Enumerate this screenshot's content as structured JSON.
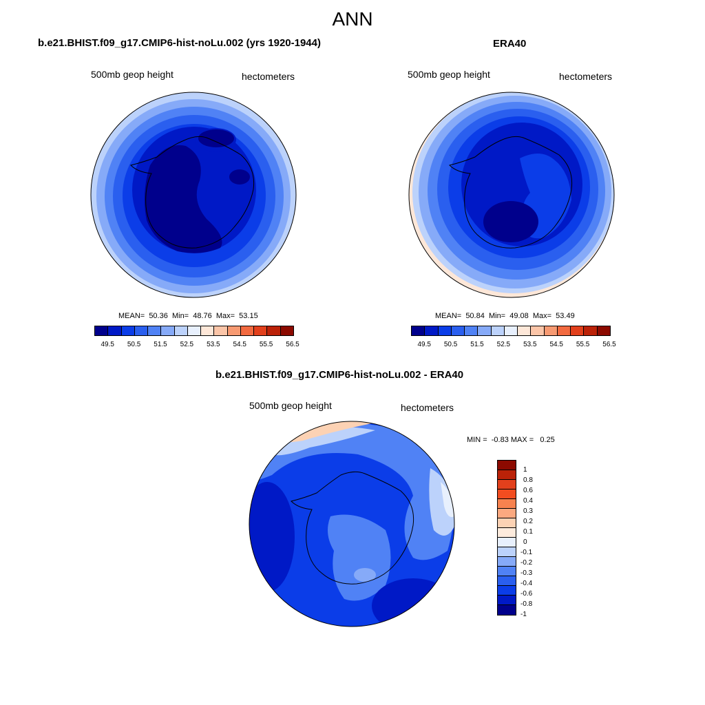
{
  "main_title": "ANN",
  "panels": [
    {
      "title": "b.e21.BHIST.f09_g17.CMIP6-hist-noLu.002 (yrs 1920-1944)",
      "left_label": "500mb geop height",
      "right_label": "hectometers",
      "stats": "MEAN=  50.36  Min=  48.76  Max=  53.15",
      "colorbar_ticks": [
        "49.5",
        "50.5",
        "51.5",
        "52.5",
        "53.5",
        "54.5",
        "55.5",
        "56.5"
      ]
    },
    {
      "title": "ERA40",
      "left_label": "500mb geop height",
      "right_label": "hectometers",
      "stats": "MEAN=  50.84  Min=  49.08  Max=  53.49",
      "colorbar_ticks": [
        "49.5",
        "50.5",
        "51.5",
        "52.5",
        "53.5",
        "54.5",
        "55.5",
        "56.5"
      ]
    },
    {
      "title": "b.e21.BHIST.f09_g17.CMIP6-hist-noLu.002 - ERA40",
      "left_label": "500mb geop height",
      "right_label": "hectometers",
      "stats": "MIN =  -0.83 MAX =   0.25",
      "colorbar_ticks": [
        "1",
        "0.8",
        "0.6",
        "0.4",
        "0.3",
        "0.2",
        "0.1",
        "0",
        "-0.1",
        "-0.2",
        "-0.3",
        "-0.4",
        "-0.6",
        "-0.8",
        "-1"
      ]
    }
  ],
  "colors": {
    "abs_scale": [
      "#00008c",
      "#0019c6",
      "#0b3de8",
      "#2a5fef",
      "#5082f5",
      "#86aaf8",
      "#bcd2fb",
      "#e8f0fd",
      "#fde7d8",
      "#fbc5a8",
      "#f79a72",
      "#f26a40",
      "#e2401c",
      "#bb2208",
      "#8c0a00"
    ],
    "diff_scale": [
      "#8c0a00",
      "#bb2208",
      "#e2401c",
      "#f24d20",
      "#f7824f",
      "#fba980",
      "#fcd2b4",
      "#fdebdd",
      "#e8f0fd",
      "#bcd2fb",
      "#86aaf8",
      "#5082f5",
      "#2a5fef",
      "#0b3de8",
      "#0019c6",
      "#00008c"
    ]
  }
}
